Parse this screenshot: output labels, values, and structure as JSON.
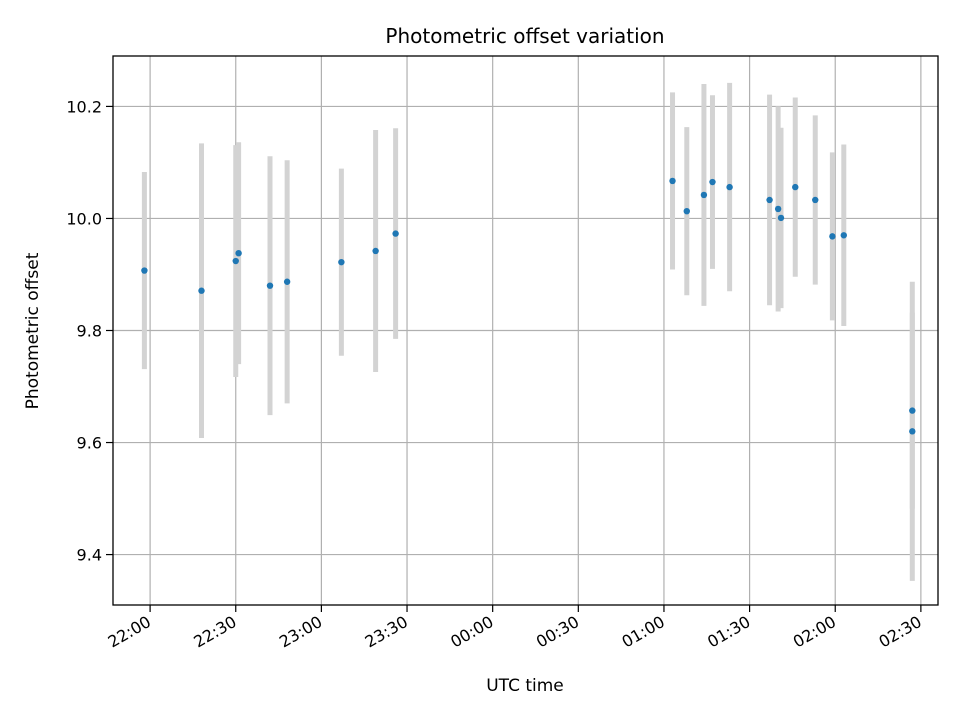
{
  "chart_data": {
    "type": "scatter",
    "title": "Photometric offset variation",
    "xlabel": "UTC time",
    "ylabel": "Photometric offset",
    "x_ticks": [
      "22:00",
      "22:30",
      "23:00",
      "23:30",
      "00:00",
      "00:30",
      "01:00",
      "01:30",
      "02:00",
      "02:30"
    ],
    "y_ticks": [
      "9.4",
      "9.6",
      "9.8",
      "10.0",
      "10.2"
    ],
    "grid": true,
    "colors": {
      "points": "#1f77b4",
      "errorbars": "#d3d3d3",
      "grid": "#b0b0b0"
    },
    "xlim": [
      "21:47",
      "02:36"
    ],
    "ylim": [
      9.31,
      10.29
    ],
    "points": [
      {
        "time": "21:58",
        "y": 9.907,
        "err": 0.176
      },
      {
        "time": "22:18",
        "y": 9.871,
        "err": 0.263
      },
      {
        "time": "22:30",
        "y": 9.924,
        "err": 0.207
      },
      {
        "time": "22:31",
        "y": 9.938,
        "err": 0.198
      },
      {
        "time": "22:42",
        "y": 9.88,
        "err": 0.231
      },
      {
        "time": "22:48",
        "y": 9.887,
        "err": 0.217
      },
      {
        "time": "23:07",
        "y": 9.922,
        "err": 0.167
      },
      {
        "time": "23:19",
        "y": 9.942,
        "err": 0.216
      },
      {
        "time": "23:26",
        "y": 9.973,
        "err": 0.188
      },
      {
        "time": "01:03",
        "y": 10.067,
        "err": 0.158
      },
      {
        "time": "01:08",
        "y": 10.013,
        "err": 0.15
      },
      {
        "time": "01:14",
        "y": 10.042,
        "err": 0.198
      },
      {
        "time": "01:17",
        "y": 10.065,
        "err": 0.155
      },
      {
        "time": "01:23",
        "y": 10.056,
        "err": 0.186
      },
      {
        "time": "01:37",
        "y": 10.033,
        "err": 0.188
      },
      {
        "time": "01:40",
        "y": 10.017,
        "err": 0.183
      },
      {
        "time": "01:41",
        "y": 10.001,
        "err": 0.161
      },
      {
        "time": "01:46",
        "y": 10.056,
        "err": 0.16
      },
      {
        "time": "01:53",
        "y": 10.033,
        "err": 0.151
      },
      {
        "time": "01:59",
        "y": 9.968,
        "err": 0.15
      },
      {
        "time": "02:03",
        "y": 9.97,
        "err": 0.162
      },
      {
        "time": "02:27",
        "y": 9.657,
        "err": 0.175
      },
      {
        "time": "02:27",
        "y": 9.62,
        "err": 0.267
      }
    ]
  }
}
